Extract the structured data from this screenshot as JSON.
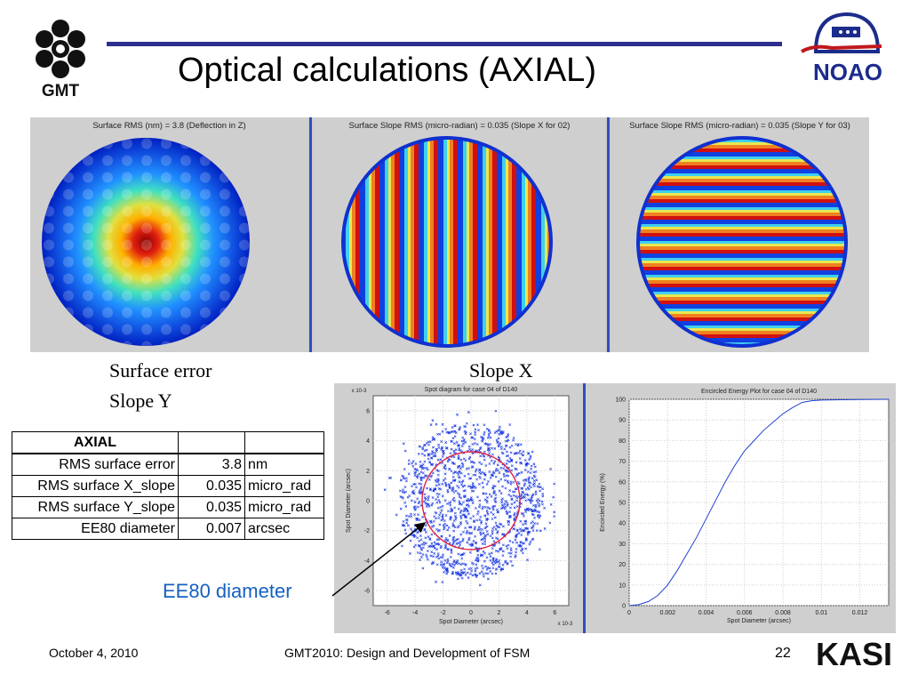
{
  "slide": {
    "title": "Optical calculations (AXIAL)",
    "page_number": "22",
    "footer_date": "October 4, 2010",
    "footer_center": "GMT2010: Design and Development of FSM"
  },
  "logos": {
    "gmt_text": "GMT",
    "noao_text": "NOAO",
    "kasi_text": "KASI"
  },
  "panels": [
    {
      "title": "Surface RMS (nm) =    3.8 (Deflection in Z)"
    },
    {
      "title": "Surface Slope RMS (micro-radian) =  0.035 (Slope X for 02)"
    },
    {
      "title": "Surface Slope RMS (micro-radian) =  0.035 (Slope Y for 03)"
    }
  ],
  "captions": {
    "surface_error": "Surface error",
    "slope_x": "Slope X",
    "slope_y": "Slope Y"
  },
  "table": {
    "header": "AXIAL",
    "rows": [
      {
        "label": "RMS surface error",
        "value": "3.8",
        "unit": "nm"
      },
      {
        "label": "RMS surface X_slope",
        "value": "0.035",
        "unit": "micro_rad"
      },
      {
        "label": "RMS surface Y_slope",
        "value": "0.035",
        "unit": "micro_rad"
      },
      {
        "label": "EE80 diameter",
        "value": "0.007",
        "unit": "arcsec"
      }
    ]
  },
  "annotation": {
    "ee80_label": "EE80 diameter"
  },
  "chart_data": [
    {
      "type": "scatter",
      "title": "Spot diagram for case 04 of D140",
      "xlabel": "Spot Diameter (arcsec)",
      "ylabel": "Spot Diameter (arcsec)",
      "exponent_x": "x 10-3",
      "exponent_y": "x 10-3",
      "xlim": [
        -7,
        7
      ],
      "ylim": [
        -7,
        7
      ],
      "xticks": [
        "-6",
        "-4",
        "-2",
        "0",
        "2",
        "4",
        "6"
      ],
      "yticks": [
        "6",
        "4",
        "2",
        "0",
        "-2",
        "-4",
        "-6"
      ],
      "circle_diameter": 7,
      "colors": {
        "points": "#1030e0",
        "circle": "#e02040"
      }
    },
    {
      "type": "line",
      "title": "Encircled Energy Plot for case 04 of D140",
      "xlabel": "Spot Diameter (arcsec)",
      "ylabel": "Encircled Energy (%)",
      "xlim": [
        0,
        0.0135
      ],
      "ylim": [
        0,
        100
      ],
      "xticks": [
        "0",
        "0.002",
        "0.004",
        "0.006",
        "0.008",
        "0.01",
        "0.012"
      ],
      "yticks": [
        "100",
        "90",
        "80",
        "70",
        "60",
        "50",
        "40",
        "30",
        "20",
        "10",
        "0"
      ],
      "x": [
        0,
        0.0005,
        0.001,
        0.0015,
        0.002,
        0.0025,
        0.003,
        0.0035,
        0.004,
        0.0045,
        0.005,
        0.0055,
        0.006,
        0.0065,
        0.007,
        0.0075,
        0.008,
        0.0085,
        0.009,
        0.0095,
        0.01,
        0.011,
        0.012,
        0.0135
      ],
      "y": [
        0,
        0.5,
        2,
        5,
        10,
        17,
        25,
        33,
        42,
        51,
        60,
        68,
        75,
        80,
        85,
        89,
        93,
        96,
        98.5,
        99.3,
        99.6,
        99.8,
        99.9,
        100
      ],
      "colors": {
        "line": "#2040d0"
      }
    }
  ]
}
